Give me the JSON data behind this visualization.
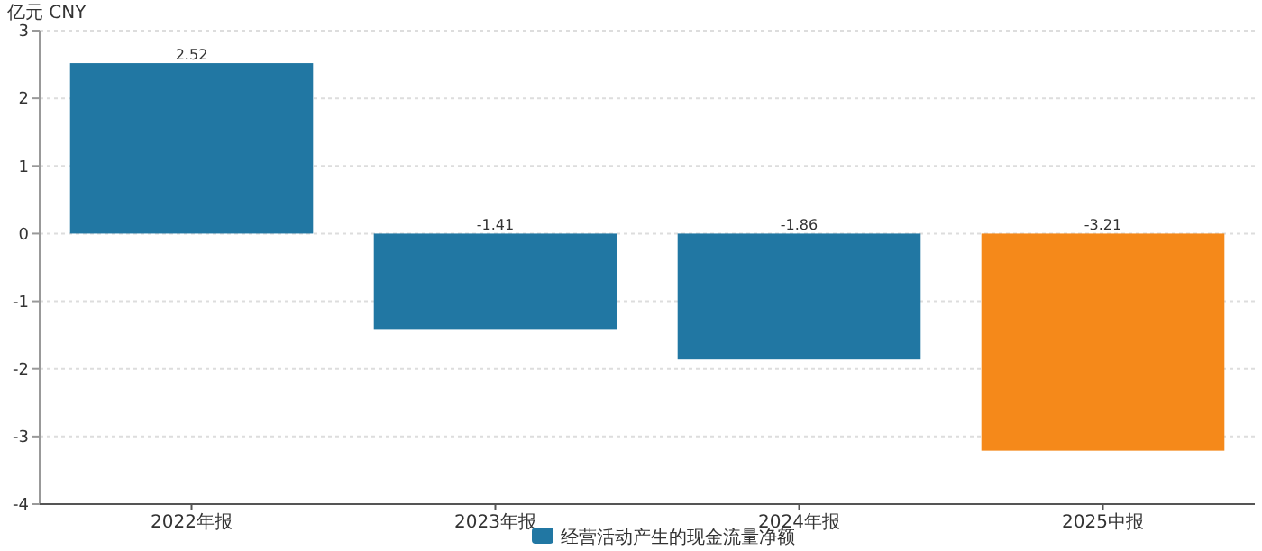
{
  "chart_data": {
    "type": "bar",
    "ylabel": "亿元 CNY",
    "categories": [
      "2022年报",
      "2023年报",
      "2024年报",
      "2025中报"
    ],
    "series": [
      {
        "name": "经营活动产生的现金流量净额",
        "color": "#2177a3",
        "colors": [
          "#2177a3",
          "#2177a3",
          "#2177a3",
          "#f5891a"
        ],
        "values": [
          2.52,
          -1.41,
          -1.86,
          -3.21
        ]
      }
    ],
    "ylim": [
      -4,
      3
    ],
    "yticks": [
      -4,
      -3,
      -2,
      -1,
      0,
      1,
      2,
      3
    ],
    "grid": "y",
    "legend": "bottom",
    "data_labels": true
  }
}
